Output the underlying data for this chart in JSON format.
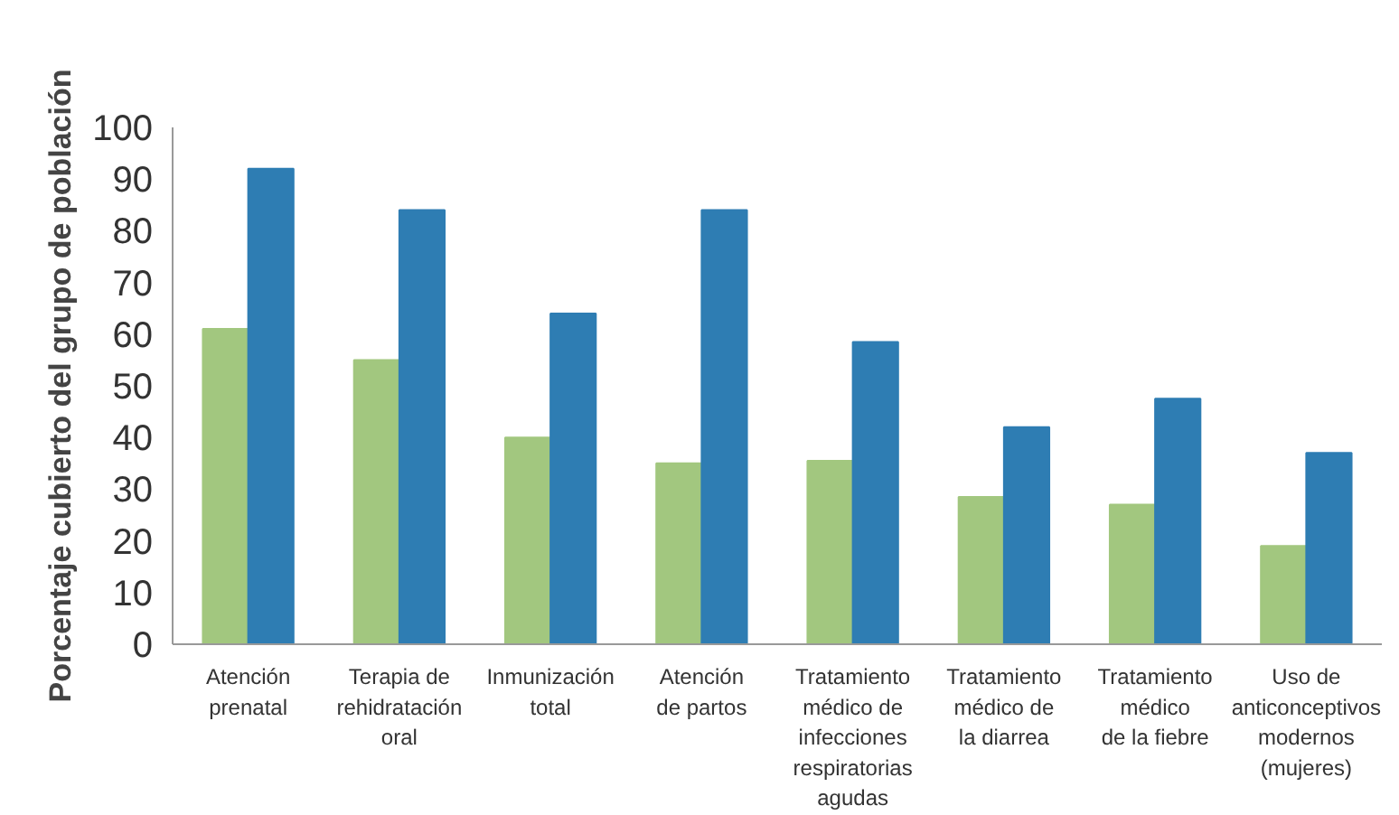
{
  "chart_data": {
    "type": "bar",
    "ylabel": "Porcentaje cubierto del grupo de población",
    "categories": [
      "Atención\nprenatal",
      "Terapia de\nrehidratación\noral",
      "Inmunización\ntotal",
      "Atención\nde partos",
      "Tratamiento\nmédico de\ninfecciones\nrespiratorias\nagudas",
      "Tratamiento\nmédico de\nla diarrea",
      "Tratamiento\nmédico\nde la fiebre",
      "Uso de\nanticonceptivos\nmodernos\n(mujeres)"
    ],
    "series": [
      {
        "color": "#a2c77f",
        "values": [
          61,
          55,
          40,
          35,
          35.5,
          28.5,
          27,
          19
        ]
      },
      {
        "color": "#2e7db3",
        "values": [
          92,
          84,
          64,
          84,
          58.5,
          42,
          47.5,
          37
        ]
      }
    ],
    "ylim": [
      0,
      100
    ],
    "yticks": [
      0,
      10,
      20,
      30,
      40,
      50,
      60,
      70,
      80,
      90,
      100
    ],
    "grid": false
  }
}
